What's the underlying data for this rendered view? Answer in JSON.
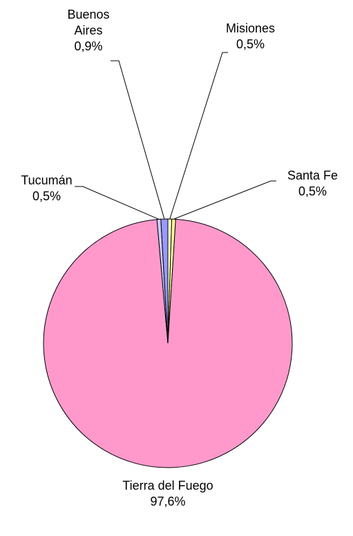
{
  "chart_data": {
    "type": "pie",
    "categories": [
      "Misiones",
      "Santa Fe",
      "Tierra del Fuego",
      "Tucumán",
      "Buenos Aires"
    ],
    "values": [
      0.5,
      0.5,
      97.6,
      0.5,
      0.9
    ],
    "value_labels": [
      "0,5%",
      "0,5%",
      "97,6%",
      "0,5%",
      "0,9%"
    ],
    "colors": [
      "#ffffcc",
      "#ffff99",
      "#ff99cc",
      "#ccccff",
      "#9999ff"
    ]
  }
}
